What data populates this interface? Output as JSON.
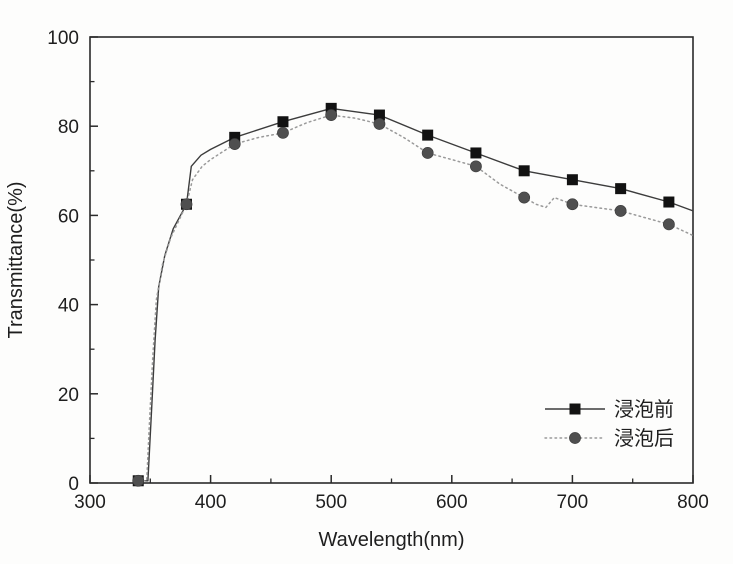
{
  "figure": {
    "background_color": "#fdfdfc",
    "axis_color": "#2a2a2a",
    "text_color": "#1e1e1e"
  },
  "chart_data": {
    "type": "line",
    "title": "",
    "xlabel": "Wavelength(nm)",
    "ylabel": "Transmittance(%)",
    "xlim": [
      300,
      800
    ],
    "ylim": [
      0,
      100
    ],
    "x_major_ticks": [
      300,
      400,
      500,
      600,
      700,
      800
    ],
    "x_minor_ticks": [
      350,
      450,
      550,
      650,
      750
    ],
    "y_major_ticks": [
      0,
      20,
      40,
      60,
      80,
      100
    ],
    "y_minor_ticks": [
      10,
      30,
      50,
      70,
      90
    ],
    "grid": false,
    "legend": {
      "position": "inside-lower-right",
      "entries": [
        "浸泡前",
        "浸泡后"
      ]
    },
    "series": [
      {
        "name": "浸泡前",
        "marker": "square",
        "marker_color": "#121212",
        "line_color": "#3c3c3c",
        "line_style": "solid",
        "x": [
          340,
          380,
          420,
          460,
          500,
          540,
          580,
          620,
          660,
          700,
          740,
          780
        ],
        "y": [
          0.5,
          62.5,
          77.5,
          81,
          84,
          82.5,
          78,
          74,
          70,
          68,
          66,
          63
        ],
        "line_path": [
          [
            340,
            0.5
          ],
          [
            348,
            0.5
          ],
          [
            351,
            16
          ],
          [
            354,
            32
          ],
          [
            357,
            44
          ],
          [
            362,
            51
          ],
          [
            369,
            57
          ],
          [
            380,
            62.5
          ],
          [
            384,
            71
          ],
          [
            392,
            73.5
          ],
          [
            400,
            74.8
          ],
          [
            420,
            77.5
          ],
          [
            460,
            81
          ],
          [
            500,
            84
          ],
          [
            540,
            82.5
          ],
          [
            580,
            78
          ],
          [
            620,
            74
          ],
          [
            660,
            70
          ],
          [
            700,
            68
          ],
          [
            740,
            66
          ],
          [
            780,
            63
          ],
          [
            800,
            61
          ]
        ]
      },
      {
        "name": "浸泡后",
        "marker": "circle",
        "marker_color": "#4f4f4f",
        "line_color": "#9a9a9a",
        "line_style": "dotted",
        "x": [
          340,
          380,
          420,
          460,
          500,
          540,
          580,
          620,
          660,
          700,
          740,
          780
        ],
        "y": [
          0.5,
          62.5,
          76,
          78.5,
          82.5,
          80.5,
          74,
          71,
          64,
          62.5,
          61,
          58
        ],
        "line_path": [
          [
            340,
            0.5
          ],
          [
            347,
            0.5
          ],
          [
            349,
            12
          ],
          [
            352,
            28
          ],
          [
            355,
            41
          ],
          [
            360,
            49
          ],
          [
            367,
            55
          ],
          [
            380,
            62.5
          ],
          [
            385,
            68
          ],
          [
            393,
            71
          ],
          [
            400,
            72.5
          ],
          [
            420,
            76
          ],
          [
            440,
            77.5
          ],
          [
            460,
            78.5
          ],
          [
            480,
            80.8
          ],
          [
            500,
            82.5
          ],
          [
            520,
            81.8
          ],
          [
            540,
            80.5
          ],
          [
            560,
            77.5
          ],
          [
            580,
            74
          ],
          [
            600,
            72.5
          ],
          [
            620,
            71
          ],
          [
            640,
            67
          ],
          [
            660,
            64
          ],
          [
            670,
            62.5
          ],
          [
            678,
            61.8
          ],
          [
            685,
            64
          ],
          [
            693,
            63.2
          ],
          [
            700,
            62.5
          ],
          [
            740,
            61
          ],
          [
            780,
            58
          ],
          [
            800,
            55.5
          ]
        ]
      }
    ]
  }
}
